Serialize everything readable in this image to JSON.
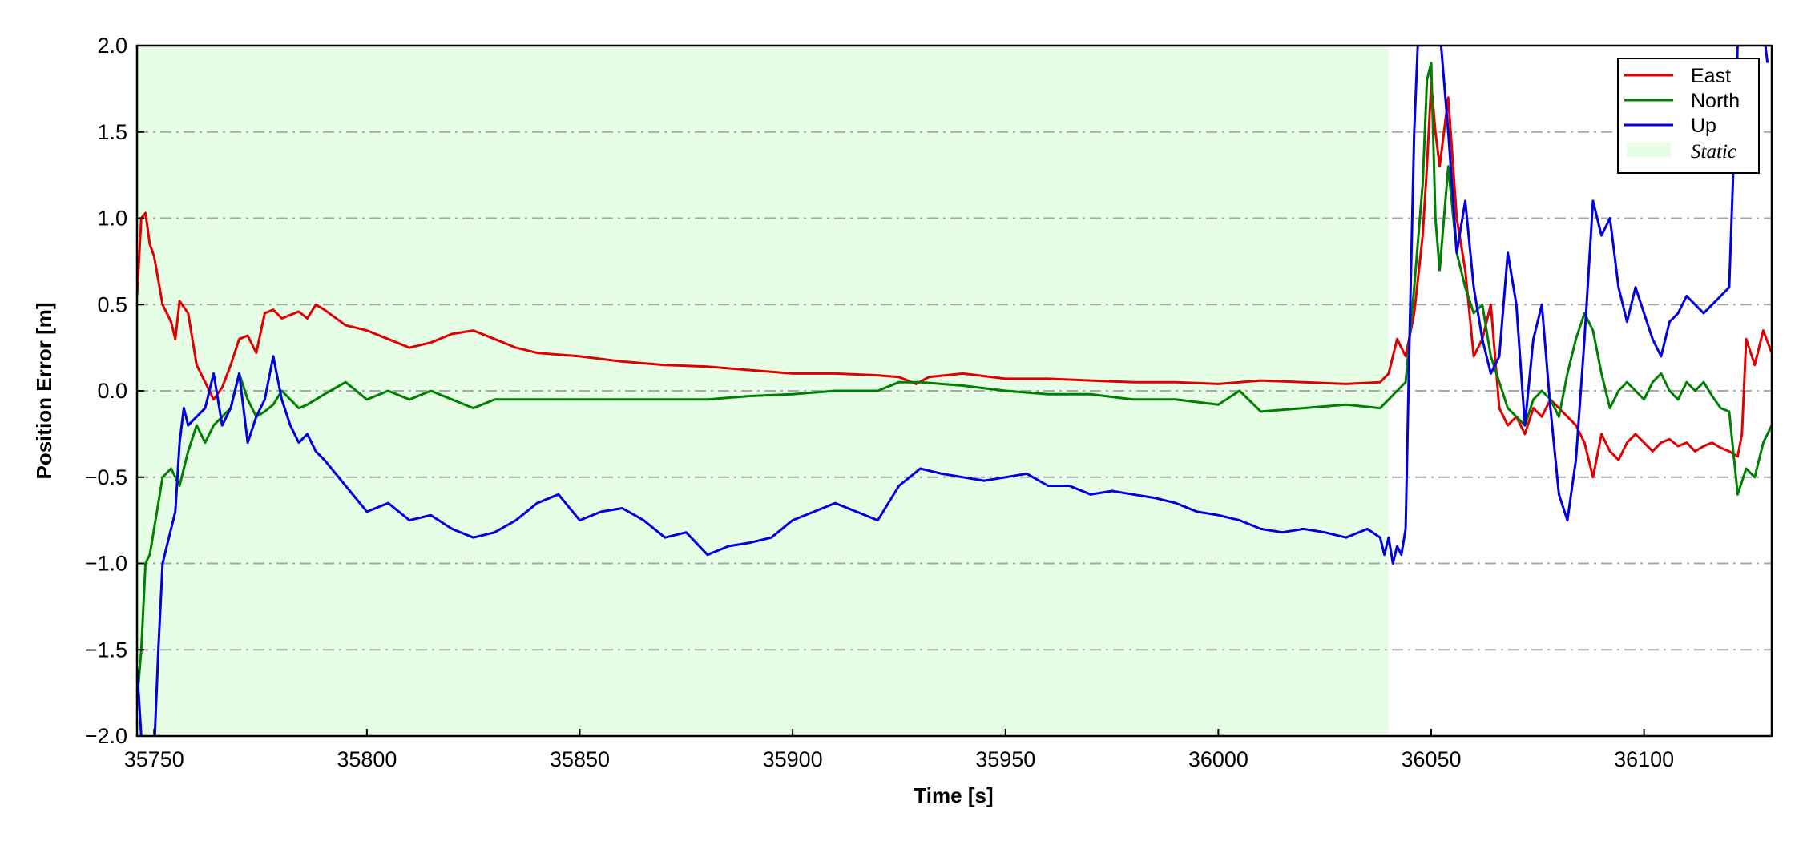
{
  "chart_data": {
    "type": "line",
    "xlabel": "Time [s]",
    "ylabel": "Position Error [m]",
    "xlim": [
      35746,
      36130
    ],
    "ylim": [
      -2.0,
      2.0
    ],
    "xticks": [
      35750,
      35800,
      35850,
      35900,
      35950,
      36000,
      36050,
      36100
    ],
    "xtick_labels": [
      "35750",
      "35800",
      "35850",
      "35900",
      "35950",
      "36000",
      "36050",
      "36100"
    ],
    "yticks": [
      2.0,
      1.5,
      1.0,
      0.5,
      0.0,
      -0.5,
      -1.0,
      -1.5,
      -2.0
    ],
    "ytick_labels": [
      "2.0",
      "1.5",
      "1.0",
      "0.5",
      "0.0",
      "−0.5",
      "−1.0",
      "−1.5",
      "−2.0"
    ],
    "grid": "horizontal dash-dot",
    "legend_position": "top-right",
    "static_region": {
      "label": "Static",
      "x_start": 35746,
      "x_end": 36040,
      "color": "#e6fde6"
    },
    "series": [
      {
        "name": "East",
        "color": "#e00000",
        "x": [
          35746,
          35747,
          35748,
          35749,
          35750,
          35752,
          35754,
          35755,
          35756,
          35758,
          35760,
          35762,
          35764,
          35766,
          35768,
          35770,
          35772,
          35774,
          35776,
          35778,
          35780,
          35782,
          35784,
          35786,
          35788,
          35790,
          35795,
          35800,
          35805,
          35810,
          35815,
          35820,
          35825,
          35830,
          35835,
          35840,
          35850,
          35860,
          35870,
          35880,
          35890,
          35900,
          35910,
          35920,
          35925,
          35929,
          35932,
          35940,
          35950,
          35960,
          35970,
          35980,
          35990,
          36000,
          36010,
          36020,
          36030,
          36038,
          36040,
          36042,
          36044,
          36046,
          36048,
          36049,
          36050,
          36051,
          36052,
          36054,
          36056,
          36058,
          36060,
          36062,
          36064,
          36066,
          36068,
          36070,
          36072,
          36074,
          36076,
          36078,
          36080,
          36082,
          36084,
          36086,
          36088,
          36090,
          36092,
          36094,
          36096,
          36098,
          36100,
          36102,
          36104,
          36106,
          36108,
          36110,
          36112,
          36114,
          36116,
          36118,
          36120,
          36122,
          36123,
          36124,
          36126,
          36128,
          36130
        ],
        "values": [
          0.55,
          1.0,
          1.03,
          0.85,
          0.78,
          0.5,
          0.4,
          0.3,
          0.52,
          0.45,
          0.15,
          0.05,
          -0.05,
          0.02,
          0.15,
          0.3,
          0.32,
          0.22,
          0.45,
          0.47,
          0.42,
          0.44,
          0.46,
          0.42,
          0.5,
          0.47,
          0.38,
          0.35,
          0.3,
          0.25,
          0.28,
          0.33,
          0.35,
          0.3,
          0.25,
          0.22,
          0.2,
          0.17,
          0.15,
          0.14,
          0.12,
          0.1,
          0.1,
          0.09,
          0.08,
          0.04,
          0.08,
          0.1,
          0.07,
          0.07,
          0.06,
          0.05,
          0.05,
          0.04,
          0.06,
          0.05,
          0.04,
          0.05,
          0.1,
          0.3,
          0.2,
          0.45,
          0.9,
          1.3,
          1.78,
          1.5,
          1.3,
          1.7,
          1.0,
          0.7,
          0.2,
          0.3,
          0.5,
          -0.1,
          -0.2,
          -0.15,
          -0.25,
          -0.1,
          -0.15,
          -0.05,
          -0.1,
          -0.15,
          -0.2,
          -0.3,
          -0.5,
          -0.25,
          -0.35,
          -0.4,
          -0.3,
          -0.25,
          -0.3,
          -0.35,
          -0.3,
          -0.28,
          -0.32,
          -0.3,
          -0.35,
          -0.32,
          -0.3,
          -0.33,
          -0.35,
          -0.38,
          -0.25,
          0.3,
          0.15,
          0.35,
          0.22
        ]
      },
      {
        "name": "North",
        "color": "#008000",
        "x": [
          35746,
          35747,
          35748,
          35749,
          35750,
          35752,
          35754,
          35756,
          35758,
          35760,
          35762,
          35764,
          35766,
          35768,
          35770,
          35772,
          35774,
          35776,
          35778,
          35780,
          35782,
          35784,
          35786,
          35788,
          35790,
          35795,
          35800,
          35805,
          35810,
          35815,
          35820,
          35825,
          35830,
          35840,
          35850,
          35860,
          35870,
          35880,
          35890,
          35900,
          35910,
          35920,
          35925,
          35930,
          35940,
          35950,
          35960,
          35970,
          35980,
          35990,
          36000,
          36005,
          36010,
          36020,
          36030,
          36038,
          36040,
          36042,
          36044,
          36046,
          36048,
          36049,
          36050,
          36051,
          36052,
          36054,
          36056,
          36058,
          36060,
          36062,
          36064,
          36066,
          36068,
          36070,
          36072,
          36074,
          36076,
          36078,
          36080,
          36082,
          36084,
          36086,
          36088,
          36090,
          36092,
          36094,
          36096,
          36098,
          36100,
          36102,
          36104,
          36106,
          36108,
          36110,
          36112,
          36114,
          36116,
          36118,
          36120,
          36122,
          36124,
          36126,
          36128,
          36130
        ],
        "values": [
          -1.8,
          -1.5,
          -1.0,
          -0.95,
          -0.8,
          -0.5,
          -0.45,
          -0.55,
          -0.35,
          -0.2,
          -0.3,
          -0.2,
          -0.15,
          -0.1,
          0.1,
          -0.05,
          -0.15,
          -0.12,
          -0.08,
          0.0,
          -0.05,
          -0.1,
          -0.08,
          -0.05,
          -0.02,
          0.05,
          -0.05,
          0.0,
          -0.05,
          0.0,
          -0.05,
          -0.1,
          -0.05,
          -0.05,
          -0.05,
          -0.05,
          -0.05,
          -0.05,
          -0.03,
          -0.02,
          0.0,
          0.0,
          0.05,
          0.05,
          0.03,
          0.0,
          -0.02,
          -0.02,
          -0.05,
          -0.05,
          -0.08,
          0.0,
          -0.12,
          -0.1,
          -0.08,
          -0.1,
          -0.05,
          0.0,
          0.05,
          0.6,
          1.2,
          1.8,
          1.9,
          1.0,
          0.7,
          1.3,
          0.8,
          0.6,
          0.45,
          0.5,
          0.2,
          0.05,
          -0.1,
          -0.15,
          -0.2,
          -0.05,
          0.0,
          -0.05,
          -0.15,
          0.1,
          0.3,
          0.45,
          0.35,
          0.1,
          -0.1,
          0.0,
          0.05,
          0.0,
          -0.05,
          0.05,
          0.1,
          0.0,
          -0.05,
          0.05,
          0.0,
          0.05,
          -0.03,
          -0.1,
          -0.12,
          -0.6,
          -0.45,
          -0.5,
          -0.3,
          -0.2
        ]
      },
      {
        "name": "Up",
        "color": "#0000e0",
        "x": [
          35746,
          35747,
          35748,
          35749,
          35750,
          35751,
          35752,
          35754,
          35755,
          35756,
          35757,
          35758,
          35760,
          35762,
          35764,
          35766,
          35768,
          35770,
          35772,
          35774,
          35776,
          35778,
          35780,
          35782,
          35784,
          35786,
          35788,
          35790,
          35795,
          35800,
          35805,
          35810,
          35815,
          35820,
          35825,
          35830,
          35835,
          35840,
          35845,
          35850,
          35855,
          35860,
          35865,
          35870,
          35875,
          35880,
          35885,
          35890,
          35895,
          35900,
          35905,
          35910,
          35915,
          35920,
          35925,
          35930,
          35935,
          35940,
          35945,
          35950,
          35955,
          35960,
          35965,
          35970,
          35975,
          35980,
          35985,
          35990,
          35995,
          36000,
          36005,
          36010,
          36015,
          36020,
          36025,
          36030,
          36035,
          36038,
          36039,
          36040,
          36041,
          36042,
          36043,
          36044,
          36045,
          36046,
          36047,
          36048,
          36049,
          36050,
          36052,
          36054,
          36056,
          36058,
          36060,
          36062,
          36064,
          36066,
          36068,
          36070,
          36072,
          36074,
          36076,
          36078,
          36080,
          36082,
          36084,
          36086,
          36088,
          36090,
          36092,
          36094,
          36096,
          36098,
          36100,
          36102,
          36104,
          36106,
          36108,
          36110,
          36112,
          36114,
          36116,
          36118,
          36120,
          36122,
          36124,
          36126,
          36128,
          36129
        ],
        "values": [
          -1.6,
          -2.0,
          -2.1,
          -2.1,
          -2.1,
          -1.5,
          -1.0,
          -0.8,
          -0.7,
          -0.3,
          -0.1,
          -0.2,
          -0.15,
          -0.1,
          0.1,
          -0.2,
          -0.1,
          0.1,
          -0.3,
          -0.15,
          -0.05,
          0.2,
          -0.05,
          -0.2,
          -0.3,
          -0.25,
          -0.35,
          -0.4,
          -0.55,
          -0.7,
          -0.65,
          -0.75,
          -0.72,
          -0.8,
          -0.85,
          -0.82,
          -0.75,
          -0.65,
          -0.6,
          -0.75,
          -0.7,
          -0.68,
          -0.75,
          -0.85,
          -0.82,
          -0.95,
          -0.9,
          -0.88,
          -0.85,
          -0.75,
          -0.7,
          -0.65,
          -0.7,
          -0.75,
          -0.55,
          -0.45,
          -0.48,
          -0.5,
          -0.52,
          -0.5,
          -0.48,
          -0.55,
          -0.55,
          -0.6,
          -0.58,
          -0.6,
          -0.62,
          -0.65,
          -0.7,
          -0.72,
          -0.75,
          -0.8,
          -0.82,
          -0.8,
          -0.82,
          -0.85,
          -0.8,
          -0.85,
          -0.95,
          -0.85,
          -1.0,
          -0.9,
          -0.95,
          -0.8,
          0.4,
          1.5,
          2.1,
          2.1,
          2.1,
          2.1,
          2.1,
          1.5,
          0.8,
          1.1,
          0.6,
          0.3,
          0.1,
          0.2,
          0.8,
          0.5,
          -0.2,
          0.3,
          0.5,
          -0.1,
          -0.6,
          -0.75,
          -0.4,
          0.3,
          1.1,
          0.9,
          1.0,
          0.6,
          0.4,
          0.6,
          0.45,
          0.3,
          0.2,
          0.4,
          0.45,
          0.55,
          0.5,
          0.45,
          0.5,
          0.55,
          0.6,
          2.0,
          2.1,
          2.1,
          2.1,
          1.9
        ]
      }
    ]
  }
}
